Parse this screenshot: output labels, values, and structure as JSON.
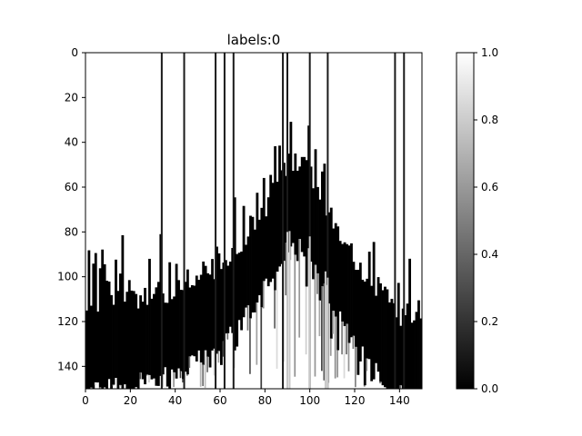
{
  "chart_data": {
    "type": "heatmap",
    "title": "labels:0",
    "xlabel": "",
    "ylabel": "",
    "colormap": "gray",
    "x_range": [
      0,
      150
    ],
    "y_range": [
      0,
      150
    ],
    "y_inverted": true,
    "x_ticks": [
      "0",
      "20",
      "40",
      "60",
      "80",
      "100",
      "120",
      "140"
    ],
    "y_ticks": [
      "0",
      "20",
      "40",
      "60",
      "80",
      "100",
      "120",
      "140"
    ],
    "colorbar": {
      "range": [
        0.0,
        1.0
      ],
      "ticks": [
        "0.0",
        "0.2",
        "0.4",
        "0.6",
        "0.8",
        "1.0"
      ]
    },
    "dark_band_center_row": [
      [
        0,
        133
      ],
      [
        10,
        132
      ],
      [
        20,
        129
      ],
      [
        30,
        128
      ],
      [
        40,
        126
      ],
      [
        47,
        121
      ],
      [
        50,
        119
      ],
      [
        55,
        117
      ],
      [
        60,
        112
      ],
      [
        65,
        108
      ],
      [
        70,
        103
      ],
      [
        75,
        95
      ],
      [
        80,
        88
      ],
      [
        85,
        78
      ],
      [
        90,
        70
      ],
      [
        95,
        68
      ],
      [
        100,
        72
      ],
      [
        105,
        82
      ],
      [
        110,
        96
      ],
      [
        115,
        104
      ],
      [
        120,
        112
      ],
      [
        125,
        120
      ],
      [
        130,
        125
      ],
      [
        135,
        130
      ],
      [
        140,
        135
      ],
      [
        149,
        140
      ]
    ],
    "dark_vertical_lines_x": [
      34,
      44,
      58,
      62,
      66,
      88,
      90,
      100,
      108,
      138,
      142
    ],
    "light_vertical_lines_x": [
      90,
      91,
      100,
      107,
      108
    ]
  },
  "colors": {
    "low": "#000000",
    "high": "#ffffff",
    "axis": "#000000"
  }
}
